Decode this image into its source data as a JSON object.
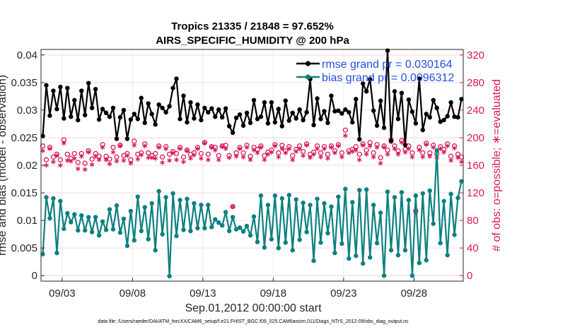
{
  "colors": {
    "rmse": "#000000",
    "bias": "#0b8080",
    "obs": "#d6175a",
    "legend_text": "#1f4fe0"
  },
  "footer": "data file: /Users/raeder/DAI/ATM_forcXX/CAM6_setup/f.e21.FHIST_BGC.f09_025.CAM6assim.011/Diags_NTrS_2012-09/obs_diag_output.nc",
  "chart_data": {
    "type": "line",
    "title": "Tropics 21335 / 21848 = 97.652%",
    "subtitle": "AIRS_SPECIFIC_HUMIDITY @ 200 hPa",
    "xlabel": "Sep.01,2012 00:00:00 start",
    "ylabel": "rmse and bias (model - observation)",
    "ylabel_right": "# of obs: o=possible; ∗=evaluated",
    "xlim": [
      1.5,
      31.5
    ],
    "ylim": [
      -0.001,
      0.041
    ],
    "ylim_right": [
      -8,
      328
    ],
    "x_ticks": [
      3,
      8,
      13,
      18,
      23,
      28
    ],
    "x_tick_labels": [
      "09/03",
      "09/08",
      "09/13",
      "09/18",
      "09/23",
      "09/28"
    ],
    "y_ticks": [
      0,
      0.005,
      0.01,
      0.015,
      0.02,
      0.025,
      0.03,
      0.035,
      0.04
    ],
    "y_tick_labels": [
      "0",
      "0.005",
      "0.01",
      "0.015",
      "0.02",
      "0.025",
      "0.03",
      "0.035",
      "0.04"
    ],
    "y_right_ticks": [
      0,
      40,
      80,
      120,
      160,
      200,
      240,
      280,
      320
    ],
    "y_right_tick_labels": [
      "0",
      "40",
      "80",
      "120",
      "160",
      "200",
      "240",
      "280",
      "320"
    ],
    "x": [
      1.625,
      1.875,
      2.125,
      2.375,
      2.625,
      2.875,
      3.125,
      3.375,
      3.625,
      3.875,
      4.125,
      4.375,
      4.625,
      4.875,
      5.125,
      5.375,
      5.625,
      5.875,
      6.125,
      6.375,
      6.625,
      6.875,
      7.125,
      7.375,
      7.625,
      7.875,
      8.125,
      8.375,
      8.625,
      8.875,
      9.125,
      9.375,
      9.625,
      9.875,
      10.125,
      10.375,
      10.625,
      10.875,
      11.125,
      11.375,
      11.625,
      11.875,
      12.125,
      12.375,
      12.625,
      12.875,
      13.125,
      13.375,
      13.625,
      13.875,
      14.125,
      14.375,
      14.625,
      14.875,
      15.125,
      15.375,
      15.625,
      15.875,
      16.125,
      16.375,
      16.625,
      16.875,
      17.125,
      17.375,
      17.625,
      17.875,
      18.125,
      18.375,
      18.625,
      18.875,
      19.125,
      19.375,
      19.625,
      19.875,
      20.125,
      20.375,
      20.625,
      20.875,
      21.125,
      21.375,
      21.625,
      21.875,
      22.125,
      22.375,
      22.625,
      22.875,
      23.125,
      23.375,
      23.625,
      23.875,
      24.125,
      24.375,
      24.625,
      24.875,
      25.125,
      25.375,
      25.625,
      25.875,
      26.125,
      26.375,
      26.625,
      26.875,
      27.125,
      27.375,
      27.625,
      27.875,
      28.125,
      28.375,
      28.625,
      28.875,
      29.125,
      29.375,
      29.625,
      29.875,
      30.125,
      30.375,
      30.625,
      30.875,
      31.125,
      31.375
    ],
    "series": [
      {
        "name": "rmse grand pr = 0.030164",
        "axis": "left",
        "marker": "filled-circle",
        "values": [
          0.0253,
          0.0345,
          0.029,
          0.0335,
          0.0302,
          0.0342,
          0.0285,
          0.034,
          0.0288,
          0.0318,
          0.0282,
          0.0335,
          0.0291,
          0.0349,
          0.0304,
          0.0338,
          0.0283,
          0.0302,
          0.0295,
          0.0288,
          0.0304,
          0.0248,
          0.0287,
          0.03,
          0.0248,
          0.0283,
          0.0293,
          0.0284,
          0.0322,
          0.0277,
          0.0312,
          0.0293,
          0.0274,
          0.031,
          0.0304,
          0.0296,
          0.0307,
          0.034,
          0.0357,
          0.0284,
          0.0326,
          0.0278,
          0.0314,
          0.0285,
          0.031,
          0.0282,
          0.0304,
          0.0296,
          0.0303,
          0.0288,
          0.0301,
          0.0287,
          0.0303,
          0.0271,
          0.0259,
          0.0286,
          0.0292,
          0.0272,
          0.0295,
          0.0277,
          0.0318,
          0.0284,
          0.0288,
          0.0314,
          0.0276,
          0.0314,
          0.0278,
          0.0302,
          0.0271,
          0.0317,
          0.0281,
          0.0295,
          0.0285,
          0.0301,
          0.0282,
          0.0296,
          0.0356,
          0.0273,
          0.0321,
          0.0284,
          0.0298,
          0.0277,
          0.0326,
          0.0298,
          0.0299,
          0.0294,
          0.0301,
          0.0296,
          0.0278,
          0.032,
          0.0247,
          0.0348,
          0.0334,
          0.0356,
          0.0299,
          0.0272,
          0.0317,
          0.0268,
          0.0408,
          0.0244,
          0.0334,
          0.0284,
          0.0331,
          0.0237,
          0.0319,
          0.0297,
          0.0276,
          0.0357,
          0.0264,
          0.0293,
          0.0287,
          0.0318,
          0.0304,
          0.0279,
          0.0282,
          0.0289,
          0.0314,
          0.0288,
          0.0287,
          0.032
        ]
      },
      {
        "name": "bias grand pr = 0.0096312",
        "axis": "left",
        "marker": "filled-circle",
        "values": [
          0.0039,
          0.0142,
          0.0104,
          0.014,
          0.0041,
          0.0135,
          0.0085,
          0.0113,
          0.0097,
          0.0111,
          0.0082,
          0.0109,
          0.0082,
          0.0106,
          0.0079,
          0.0106,
          0.0073,
          0.0098,
          0.0083,
          0.012,
          0.0084,
          0.0127,
          0.0078,
          0.0103,
          0.0054,
          0.0117,
          0.0064,
          0.0143,
          0.0081,
          0.0124,
          0.0066,
          0.0131,
          0.0046,
          0.0153,
          0.0075,
          0.0142,
          -0.0001,
          0.0149,
          0.0072,
          0.0137,
          0.0083,
          0.0139,
          0.0081,
          0.0131,
          0.0086,
          0.0128,
          0.0086,
          0.0128,
          0.0088,
          0.0102,
          0.0096,
          0.0091,
          0.0115,
          0.0081,
          0.0106,
          0.0084,
          0.0087,
          0.008,
          0.009,
          0.0073,
          0.0107,
          0.0061,
          0.0145,
          0.0051,
          0.0128,
          0.0066,
          0.0145,
          0.005,
          0.014,
          0.006,
          0.0146,
          0.0046,
          0.0138,
          0.0065,
          0.0132,
          0.0079,
          0.0128,
          0.0027,
          0.0139,
          0.006,
          0.0131,
          0.0077,
          0.0125,
          0.0041,
          0.0143,
          0.0058,
          0.0157,
          0.0031,
          0.0133,
          0.0036,
          0.0155,
          0.0022,
          0.0156,
          0.0033,
          0.0128,
          0.0059,
          0.0114,
          0.0,
          0.0152,
          0.0046,
          0.0142,
          0.0037,
          0.0151,
          0.0046,
          0.0137,
          0.0,
          0.0145,
          0.0023,
          0.0149,
          0.0028,
          0.0154,
          0.0094,
          0.0227,
          0.0059,
          0.0135,
          0.0037,
          0.0148,
          0.0074,
          0.0141,
          0.0171
        ]
      },
      {
        "name": "possible",
        "axis": "right",
        "marker": "open-circle",
        "values": [
          188,
          168,
          186,
          172,
          176,
          168,
          197,
          176,
          170,
          177,
          164,
          177,
          163,
          181,
          169,
          177,
          173,
          190,
          173,
          169,
          186,
          172,
          189,
          174,
          177,
          168,
          195,
          176,
          178,
          191,
          178,
          174,
          177,
          188,
          172,
          187,
          176,
          180,
          177,
          186,
          172,
          182,
          176,
          178,
          186,
          177,
          193,
          176,
          187,
          186,
          174,
          188,
          189,
          174,
          100,
          178,
          186,
          178,
          189,
          173,
          186,
          183,
          188,
          174,
          179,
          182,
          190,
          178,
          189,
          181,
          187,
          174,
          183,
          188,
          180,
          191,
          176,
          179,
          188,
          178,
          187,
          176,
          188,
          181,
          190,
          178,
          211,
          181,
          183,
          187,
          176,
          191,
          182,
          193,
          178,
          190,
          171,
          188,
          182,
          197,
          188,
          181,
          196,
          183,
          188,
          178,
          94,
          186,
          178,
          192,
          178,
          189,
          177,
          187,
          183,
          191,
          173,
          188,
          176,
          172
        ]
      },
      {
        "name": "evaluated",
        "axis": "right",
        "marker": "asterisk",
        "values": [
          181,
          160,
          184,
          165,
          174,
          160,
          192,
          167,
          166,
          170,
          155,
          173,
          154,
          179,
          161,
          173,
          168,
          186,
          168,
          162,
          179,
          166,
          188,
          167,
          174,
          163,
          189,
          169,
          175,
          188,
          171,
          171,
          170,
          186,
          164,
          184,
          167,
          178,
          168,
          184,
          165,
          181,
          170,
          175,
          184,
          170,
          192,
          168,
          186,
          182,
          168,
          187,
          184,
          171,
          100,
          173,
          184,
          172,
          186,
          168,
          182,
          178,
          186,
          168,
          176,
          179,
          188,
          172,
          184,
          178,
          184,
          168,
          180,
          184,
          174,
          189,
          171,
          176,
          184,
          172,
          184,
          170,
          186,
          178,
          188,
          172,
          203,
          178,
          180,
          182,
          168,
          189,
          176,
          188,
          172,
          186,
          163,
          186,
          176,
          194,
          184,
          176,
          193,
          179,
          184,
          172,
          92,
          182,
          172,
          190,
          173,
          186,
          171,
          184,
          179,
          188,
          167,
          185,
          171,
          165
        ]
      }
    ],
    "legend": [
      "rmse grand pr = 0.030164",
      "bias grand pr = 0.0096312"
    ],
    "legend_position": "top-right"
  }
}
